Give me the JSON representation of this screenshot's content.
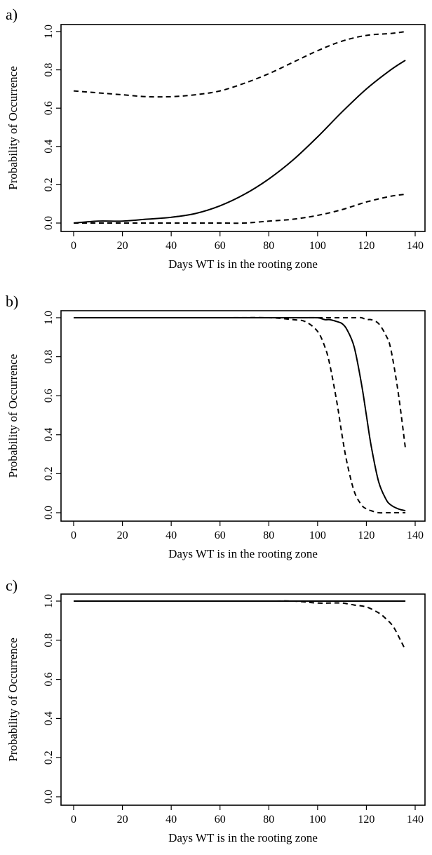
{
  "chart_data": [
    {
      "type": "line",
      "panel_label": "a)",
      "xlabel": "Days WT is in the rooting zone",
      "ylabel": "Probability of Occurrence",
      "xlim": [
        0,
        140
      ],
      "ylim": [
        0,
        1
      ],
      "x_ticks": [
        0,
        20,
        40,
        60,
        80,
        100,
        120,
        140
      ],
      "y_ticks": [
        "0.0",
        "0.2",
        "0.4",
        "0.6",
        "0.8",
        "1.0"
      ],
      "grid": false,
      "x": [
        0,
        10,
        20,
        30,
        40,
        50,
        60,
        70,
        80,
        90,
        100,
        110,
        120,
        130,
        136
      ],
      "series": [
        {
          "style": "solid",
          "values": [
            0.0,
            0.01,
            0.01,
            0.02,
            0.03,
            0.05,
            0.09,
            0.15,
            0.23,
            0.33,
            0.45,
            0.58,
            0.7,
            0.8,
            0.85
          ]
        },
        {
          "style": "dashed",
          "values": [
            0.69,
            0.68,
            0.67,
            0.66,
            0.66,
            0.67,
            0.69,
            0.73,
            0.78,
            0.84,
            0.9,
            0.95,
            0.98,
            0.99,
            1.0
          ]
        },
        {
          "style": "dashed",
          "values": [
            0.0,
            0.0,
            0.0,
            0.0,
            0.0,
            0.0,
            0.0,
            0.0,
            0.01,
            0.02,
            0.04,
            0.07,
            0.11,
            0.14,
            0.15
          ]
        }
      ]
    },
    {
      "type": "line",
      "panel_label": "b)",
      "xlabel": "Days WT is in the rooting zone",
      "ylabel": "Probability of Occurrence",
      "xlim": [
        0,
        140
      ],
      "ylim": [
        0,
        1
      ],
      "x_ticks": [
        0,
        20,
        40,
        60,
        80,
        100,
        120,
        140
      ],
      "y_ticks": [
        "0.0",
        "0.2",
        "0.4",
        "0.6",
        "0.8",
        "1.0"
      ],
      "grid": false,
      "x": [
        0,
        20,
        40,
        60,
        80,
        90,
        95,
        100,
        103,
        105,
        108,
        110,
        112,
        115,
        118,
        120,
        122,
        125,
        128,
        130,
        133,
        136
      ],
      "series": [
        {
          "style": "solid",
          "values": [
            1.0,
            1.0,
            1.0,
            1.0,
            1.0,
            1.0,
            1.0,
            1.0,
            0.99,
            0.99,
            0.98,
            0.97,
            0.94,
            0.85,
            0.66,
            0.5,
            0.34,
            0.16,
            0.07,
            0.04,
            0.02,
            0.01
          ]
        },
        {
          "style": "dashed",
          "values": [
            1.0,
            1.0,
            1.0,
            1.0,
            1.0,
            0.99,
            0.98,
            0.93,
            0.85,
            0.76,
            0.56,
            0.4,
            0.26,
            0.11,
            0.04,
            0.02,
            0.01,
            0.0,
            0.0,
            0.0,
            0.0,
            0.0
          ]
        },
        {
          "style": "dashed",
          "values": [
            1.0,
            1.0,
            1.0,
            1.0,
            1.0,
            1.0,
            1.0,
            1.0,
            1.0,
            1.0,
            1.0,
            1.0,
            1.0,
            1.0,
            1.0,
            0.99,
            0.99,
            0.97,
            0.91,
            0.84,
            0.62,
            0.33
          ]
        }
      ]
    },
    {
      "type": "line",
      "panel_label": "c)",
      "xlabel": "Days WT is in the rooting zone",
      "ylabel": "Probability of Occurrence",
      "xlim": [
        0,
        140
      ],
      "ylim": [
        0,
        1
      ],
      "x_ticks": [
        0,
        20,
        40,
        60,
        80,
        100,
        120,
        140
      ],
      "y_ticks": [
        "0.0",
        "0.2",
        "0.4",
        "0.6",
        "0.8",
        "1.0"
      ],
      "grid": false,
      "x": [
        0,
        20,
        40,
        60,
        80,
        90,
        100,
        105,
        110,
        115,
        120,
        125,
        128,
        131,
        134,
        136
      ],
      "series": [
        {
          "style": "solid",
          "values": [
            1.0,
            1.0,
            1.0,
            1.0,
            1.0,
            1.0,
            1.0,
            1.0,
            1.0,
            1.0,
            1.0,
            1.0,
            1.0,
            1.0,
            1.0,
            1.0
          ]
        },
        {
          "style": "dashed",
          "values": [
            1.0,
            1.0,
            1.0,
            1.0,
            1.0,
            1.0,
            0.99,
            0.99,
            0.99,
            0.98,
            0.97,
            0.94,
            0.91,
            0.87,
            0.8,
            0.75
          ]
        }
      ]
    }
  ]
}
